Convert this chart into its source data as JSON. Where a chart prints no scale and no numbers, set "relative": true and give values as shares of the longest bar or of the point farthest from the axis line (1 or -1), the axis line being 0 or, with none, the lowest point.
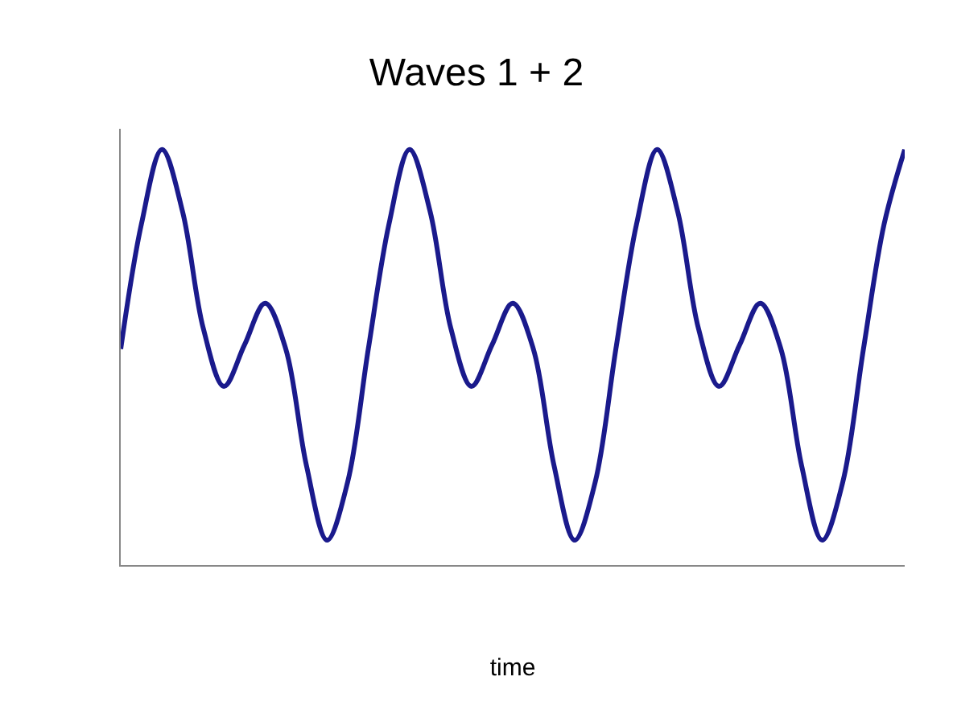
{
  "chart_data": {
    "type": "line",
    "title": "Waves 1 + 2",
    "xlabel": "time",
    "relative": true,
    "marker": "none",
    "line_style": "solid",
    "categories": [
      null,
      null,
      null,
      null,
      null,
      null,
      null,
      null,
      null,
      null,
      null,
      null,
      null,
      null,
      null,
      null,
      null,
      null,
      null,
      null,
      null,
      null,
      null,
      null,
      null,
      null,
      null,
      null,
      null,
      null,
      null,
      null,
      null,
      null,
      null,
      null,
      null,
      null,
      null
    ],
    "series": [
      {
        "color": "#1a1a8c",
        "values": [
          0.52,
          0.82,
          1.0,
          0.85,
          0.57,
          0.43,
          0.53,
          0.63,
          0.52,
          0.24,
          0.06,
          0.2,
          0.52,
          0.82,
          1.0,
          0.85,
          0.57,
          0.43,
          0.53,
          0.63,
          0.52,
          0.24,
          0.06,
          0.2,
          0.52,
          0.82,
          1.0,
          0.85,
          0.57,
          0.43,
          0.53,
          0.63,
          0.52,
          0.24,
          0.06,
          0.2,
          0.52,
          0.82,
          1.0
        ]
      }
    ]
  }
}
